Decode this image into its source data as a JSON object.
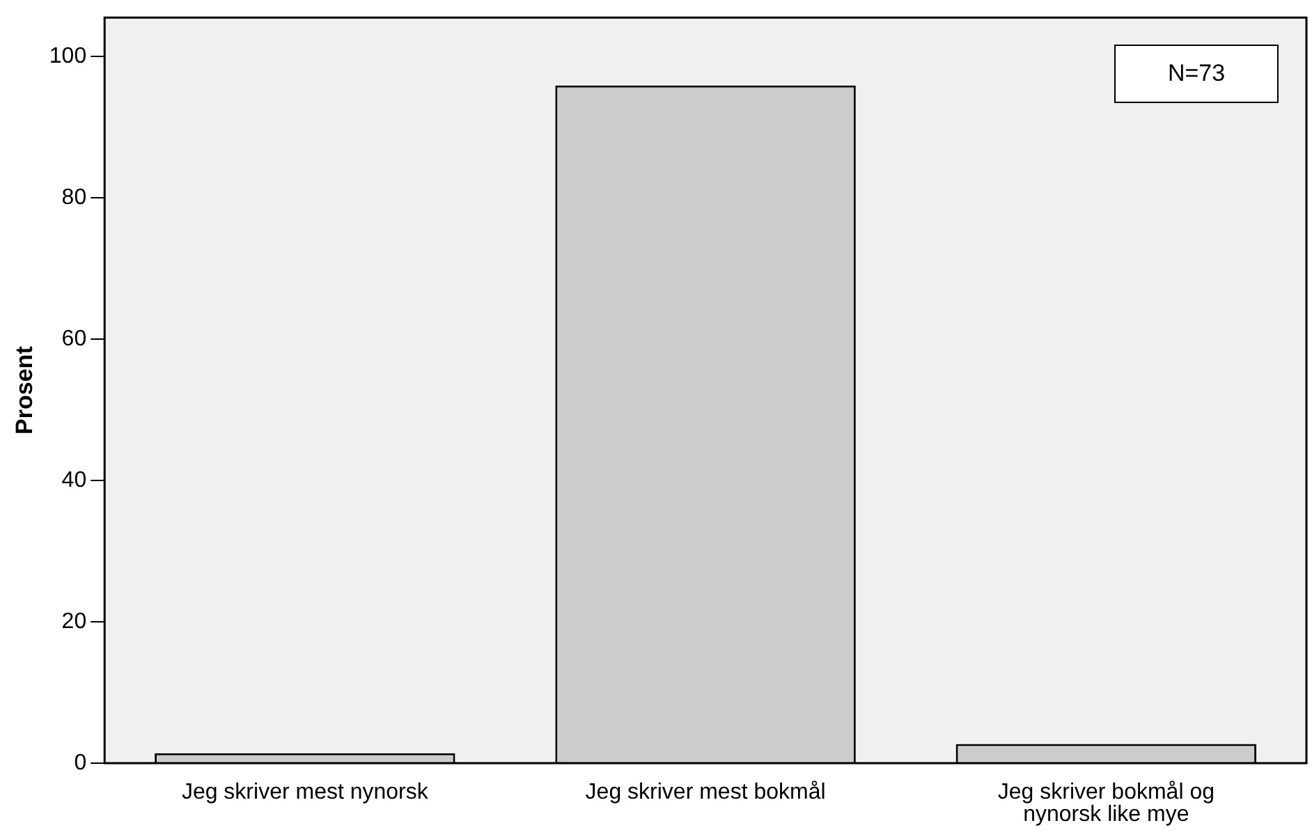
{
  "chart_data": {
    "type": "bar",
    "ylabel": "Prosent",
    "categories": [
      "Jeg skriver mest nynorsk",
      "Jeg skriver mest bokmål",
      "Jeg skriver bokmål og nynorsk like mye"
    ],
    "values": [
      1.4,
      95.9,
      2.7
    ],
    "color": "#cccccc",
    "ylim": [
      0,
      105.5
    ],
    "yticks": [
      0,
      20,
      40,
      60,
      80,
      100
    ],
    "grid": false,
    "legend": false,
    "annotations": [
      "N=73"
    ]
  }
}
